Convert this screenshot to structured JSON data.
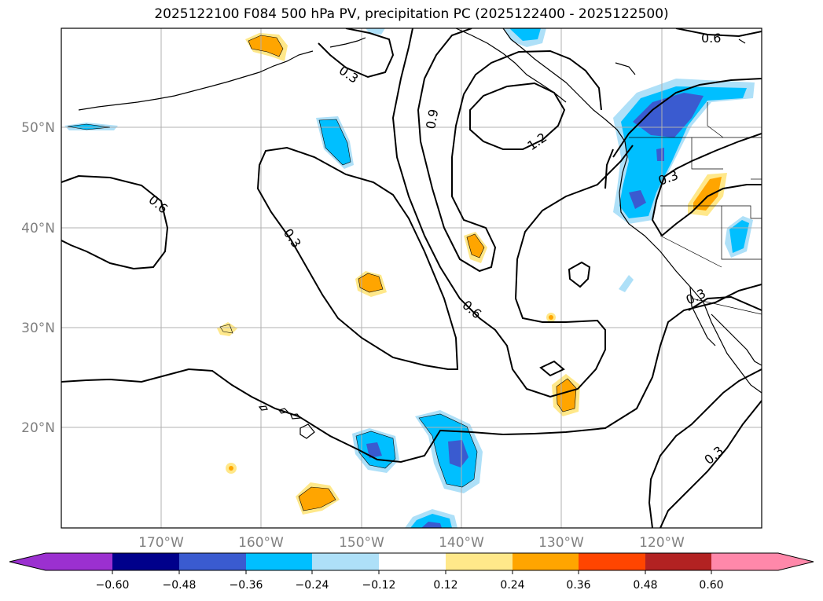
{
  "title": "2025122100 F084 500 hPa PV, precipitation PC (2025122400 - 2025122500)",
  "map": {
    "lat_labels": [
      "50°N",
      "40°N",
      "30°N",
      "20°N"
    ],
    "lon_labels": [
      "170°W",
      "160°W",
      "150°W",
      "140°W",
      "130°W",
      "120°W"
    ],
    "contour_labels": [
      "0.6",
      "0.3",
      "0.9",
      "1.2",
      "0.3",
      "0.6",
      "0.3",
      "0.6",
      "0.3",
      "0.3"
    ]
  },
  "colorbar": {
    "ticks": [
      "−0.60",
      "−0.48",
      "−0.36",
      "−0.24",
      "−0.12",
      "0.12",
      "0.24",
      "0.36",
      "0.48",
      "0.60"
    ],
    "colors": [
      "#9b30d0",
      "#00008b",
      "#3a5bd0",
      "#00bfff",
      "#aee0f8",
      "#ffffff",
      "#ffe88a",
      "#ffa500",
      "#ff4500",
      "#b22222",
      "#ff88aa"
    ]
  }
}
